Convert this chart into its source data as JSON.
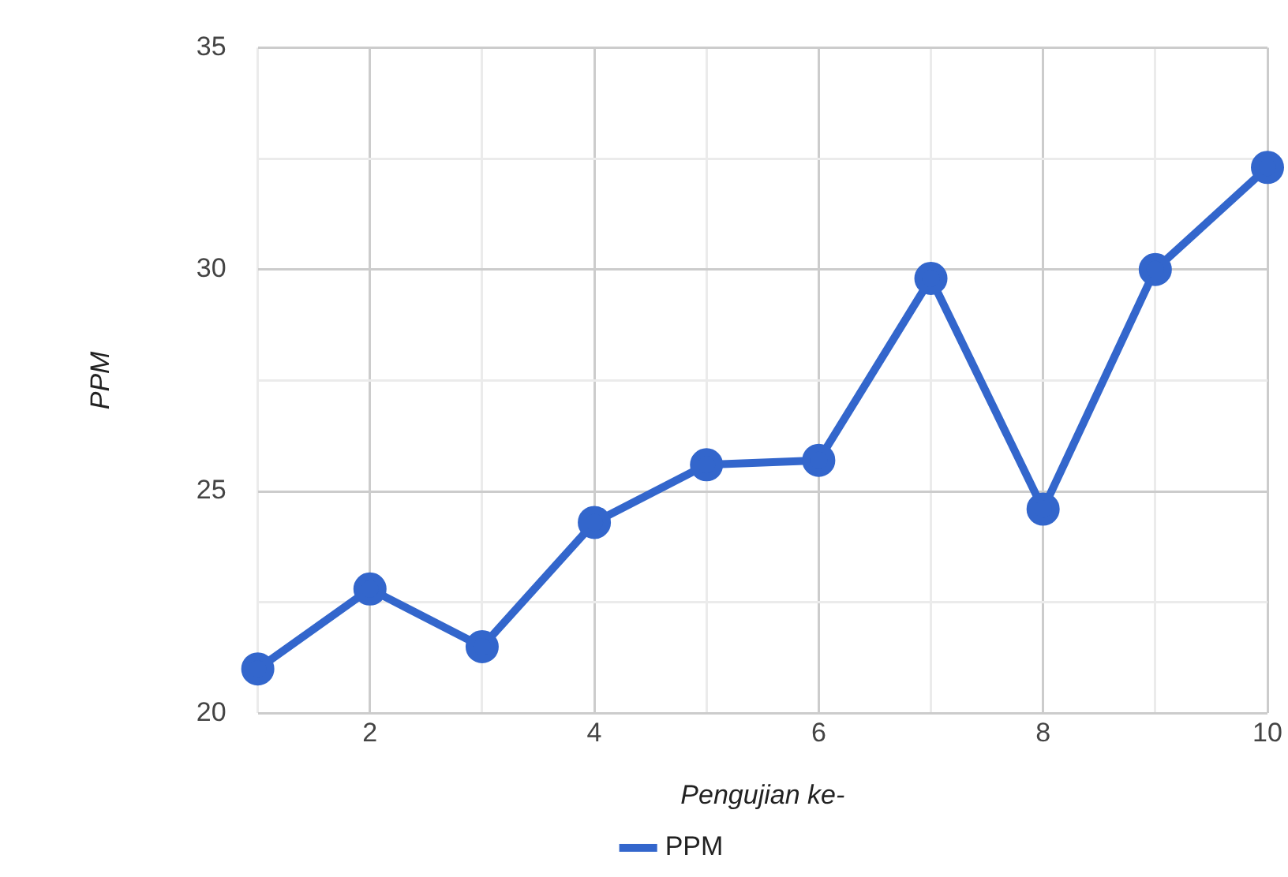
{
  "chart_data": {
    "type": "line",
    "xlabel": "Pengujian ke-",
    "ylabel": "PPM",
    "x": [
      1,
      2,
      3,
      4,
      5,
      6,
      7,
      8,
      9,
      10
    ],
    "series": [
      {
        "name": "PPM",
        "color": "#3366cc",
        "values": [
          21.0,
          22.8,
          21.5,
          24.3,
          25.6,
          25.7,
          29.8,
          24.6,
          30.0,
          32.3
        ]
      }
    ],
    "xlim": [
      1,
      10
    ],
    "xticks": [
      {
        "value": 1,
        "label": null
      },
      2,
      {
        "value": 3,
        "label": null
      },
      4,
      {
        "value": 5,
        "label": null
      },
      6,
      {
        "value": 7,
        "label": null
      },
      8,
      {
        "value": 9,
        "label": null
      },
      10
    ],
    "ylim": [
      20,
      35
    ],
    "yticks": [
      20,
      {
        "value": 22.5,
        "label": null
      },
      25,
      {
        "value": 27.5,
        "label": null
      },
      30,
      {
        "value": 32.5,
        "label": null
      },
      35
    ],
    "grid": true,
    "legend": "bottom",
    "marker": "circle",
    "line_style": "solid"
  }
}
